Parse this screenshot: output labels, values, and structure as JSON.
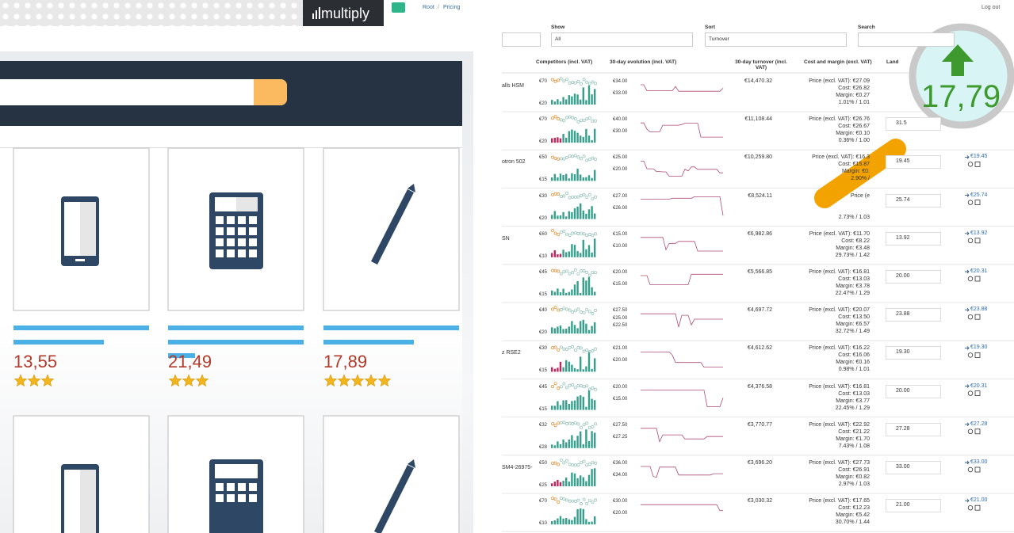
{
  "header": {
    "logo": "multiply",
    "breadcrumb": [
      "Root",
      "/",
      "Pricing"
    ],
    "logout": "Log out"
  },
  "filters": [
    {
      "label": "Show",
      "value": "All"
    },
    {
      "label": "Sort",
      "value": "Turnover"
    },
    {
      "label": "Search"
    }
  ],
  "shop": {
    "products": [
      {
        "price": "13,55",
        "stars": 3
      },
      {
        "price": "21,49",
        "stars": 3
      },
      {
        "price": "17,89",
        "stars": 5
      }
    ]
  },
  "table": {
    "columns": [
      "Competitors (incl. VAT)",
      "30-day evolution (incl. VAT)",
      "30-day turnover (incl. VAT)",
      "Cost and margin (excl. VAT)",
      "Land"
    ],
    "rows": [
      {
        "name": "alls HSM",
        "comp": [
          "€70",
          "€20"
        ],
        "evo": [
          "€34.00",
          "€33.00"
        ],
        "turnover": "€14,470.32",
        "lines": [
          "Price (excl. VAT): €27.09",
          "Cost: €26.82",
          "Margin: €0.27",
          "1.01% / 1.01"
        ]
      },
      {
        "comp": [
          "€70",
          "€20"
        ],
        "evo": [
          "€40.00",
          "€30.00"
        ],
        "turnover": "€11,108.44",
        "lines": [
          "Price (excl. VAT): €26.76",
          "Cost: €26.67",
          "Margin: €0.10",
          "0.36% / 1.00"
        ],
        "input": "31.5"
      },
      {
        "name": "otron 502",
        "comp": [
          "€50",
          "€15"
        ],
        "evo": [
          "€25.00",
          "€20.00"
        ],
        "turnover": "€10,259.80",
        "lines": [
          "Price (excl. VAT): €16.3",
          "Cost: €15.87",
          "Margin: €0.",
          "2.90% /"
        ],
        "input": "19.45",
        "suggested": "€19.45"
      },
      {
        "comp": [
          "€30",
          "€20"
        ],
        "evo": [
          "€27.00",
          "€26.00"
        ],
        "turnover": "€8,524.11",
        "lines": [
          "Price (e",
          "",
          "",
          "2.73% / 1.03"
        ],
        "input": "25.74",
        "suggested": "€25.74"
      },
      {
        "name": "SN",
        "comp": [
          "€60",
          "€10"
        ],
        "evo": [
          "€15.00",
          "€10.00"
        ],
        "turnover": "€6,982.86",
        "lines": [
          "Price (excl. VAT): €11.70",
          "Cost: €8.22",
          "Margin: €3.48",
          "29.73% / 1.42"
        ],
        "input": "13.92",
        "suggested": "€13.92"
      },
      {
        "comp": [
          "€45",
          "€15"
        ],
        "evo": [
          "€20.00",
          "€15.00"
        ],
        "turnover": "€5,566.85",
        "lines": [
          "Price (excl. VAT): €16.81",
          "Cost: €13.03",
          "Margin: €3.78",
          "22.47% / 1.29"
        ],
        "input": "20.00",
        "suggested": "€20.31"
      },
      {
        "comp": [
          "€40",
          "€20"
        ],
        "evo": [
          "€27.50",
          "€25.00",
          "€22.50"
        ],
        "turnover": "€4,697.72",
        "lines": [
          "Price (excl. VAT): €20.07",
          "Cost: €13.50",
          "Margin: €6.57",
          "32.72% / 1.49"
        ],
        "input": "23.88",
        "suggested": "€23.88"
      },
      {
        "name": "z RSE2",
        "comp": [
          "€30",
          "€15"
        ],
        "evo": [
          "€21.00",
          "€20.00"
        ],
        "turnover": "€4,612.62",
        "lines": [
          "Price (excl. VAT): €16.22",
          "Cost: €16.06",
          "Margin: €0.16",
          "0.98% / 1.01"
        ],
        "input": "19.30",
        "suggested": "€19.30"
      },
      {
        "comp": [
          "€45",
          "€15"
        ],
        "evo": [
          "€20.00",
          "€15.00"
        ],
        "turnover": "€4,376.58",
        "lines": [
          "Price (excl. VAT): €16.81",
          "Cost: €13.03",
          "Margin: €3.77",
          "22.45% / 1.29"
        ],
        "input": "20.00",
        "suggested": "€20.31"
      },
      {
        "comp": [
          "€32",
          "€28"
        ],
        "evo": [
          "€27.50",
          "€27.25"
        ],
        "turnover": "€3,770.77",
        "lines": [
          "Price (excl. VAT): €22.92",
          "Cost: €21.22",
          "Margin: €1.70",
          "7.43% / 1.08"
        ],
        "input": "27.28",
        "suggested": "€27.28"
      },
      {
        "name": "SM4-26975-",
        "comp": [
          "€50",
          "€25"
        ],
        "evo": [
          "€36.00",
          "€34.00"
        ],
        "turnover": "€3,696.20",
        "lines": [
          "Price (excl. VAT): €27.73",
          "Cost: €26.91",
          "Margin: €0.82",
          "2.97% / 1.03"
        ],
        "input": "33.00",
        "suggested": "€33.00"
      },
      {
        "comp": [
          "€70",
          "€10"
        ],
        "evo": [
          "€30.00",
          "€20.00"
        ],
        "turnover": "€3,030.32",
        "lines": [
          "Price (excl. VAT): €17.65",
          "Cost: €12.23",
          "Margin: €5.42",
          "30.70% / 1.44"
        ],
        "input": "21.00",
        "suggested": "€21.00"
      }
    ]
  },
  "magnifier": {
    "value": "17,79"
  }
}
